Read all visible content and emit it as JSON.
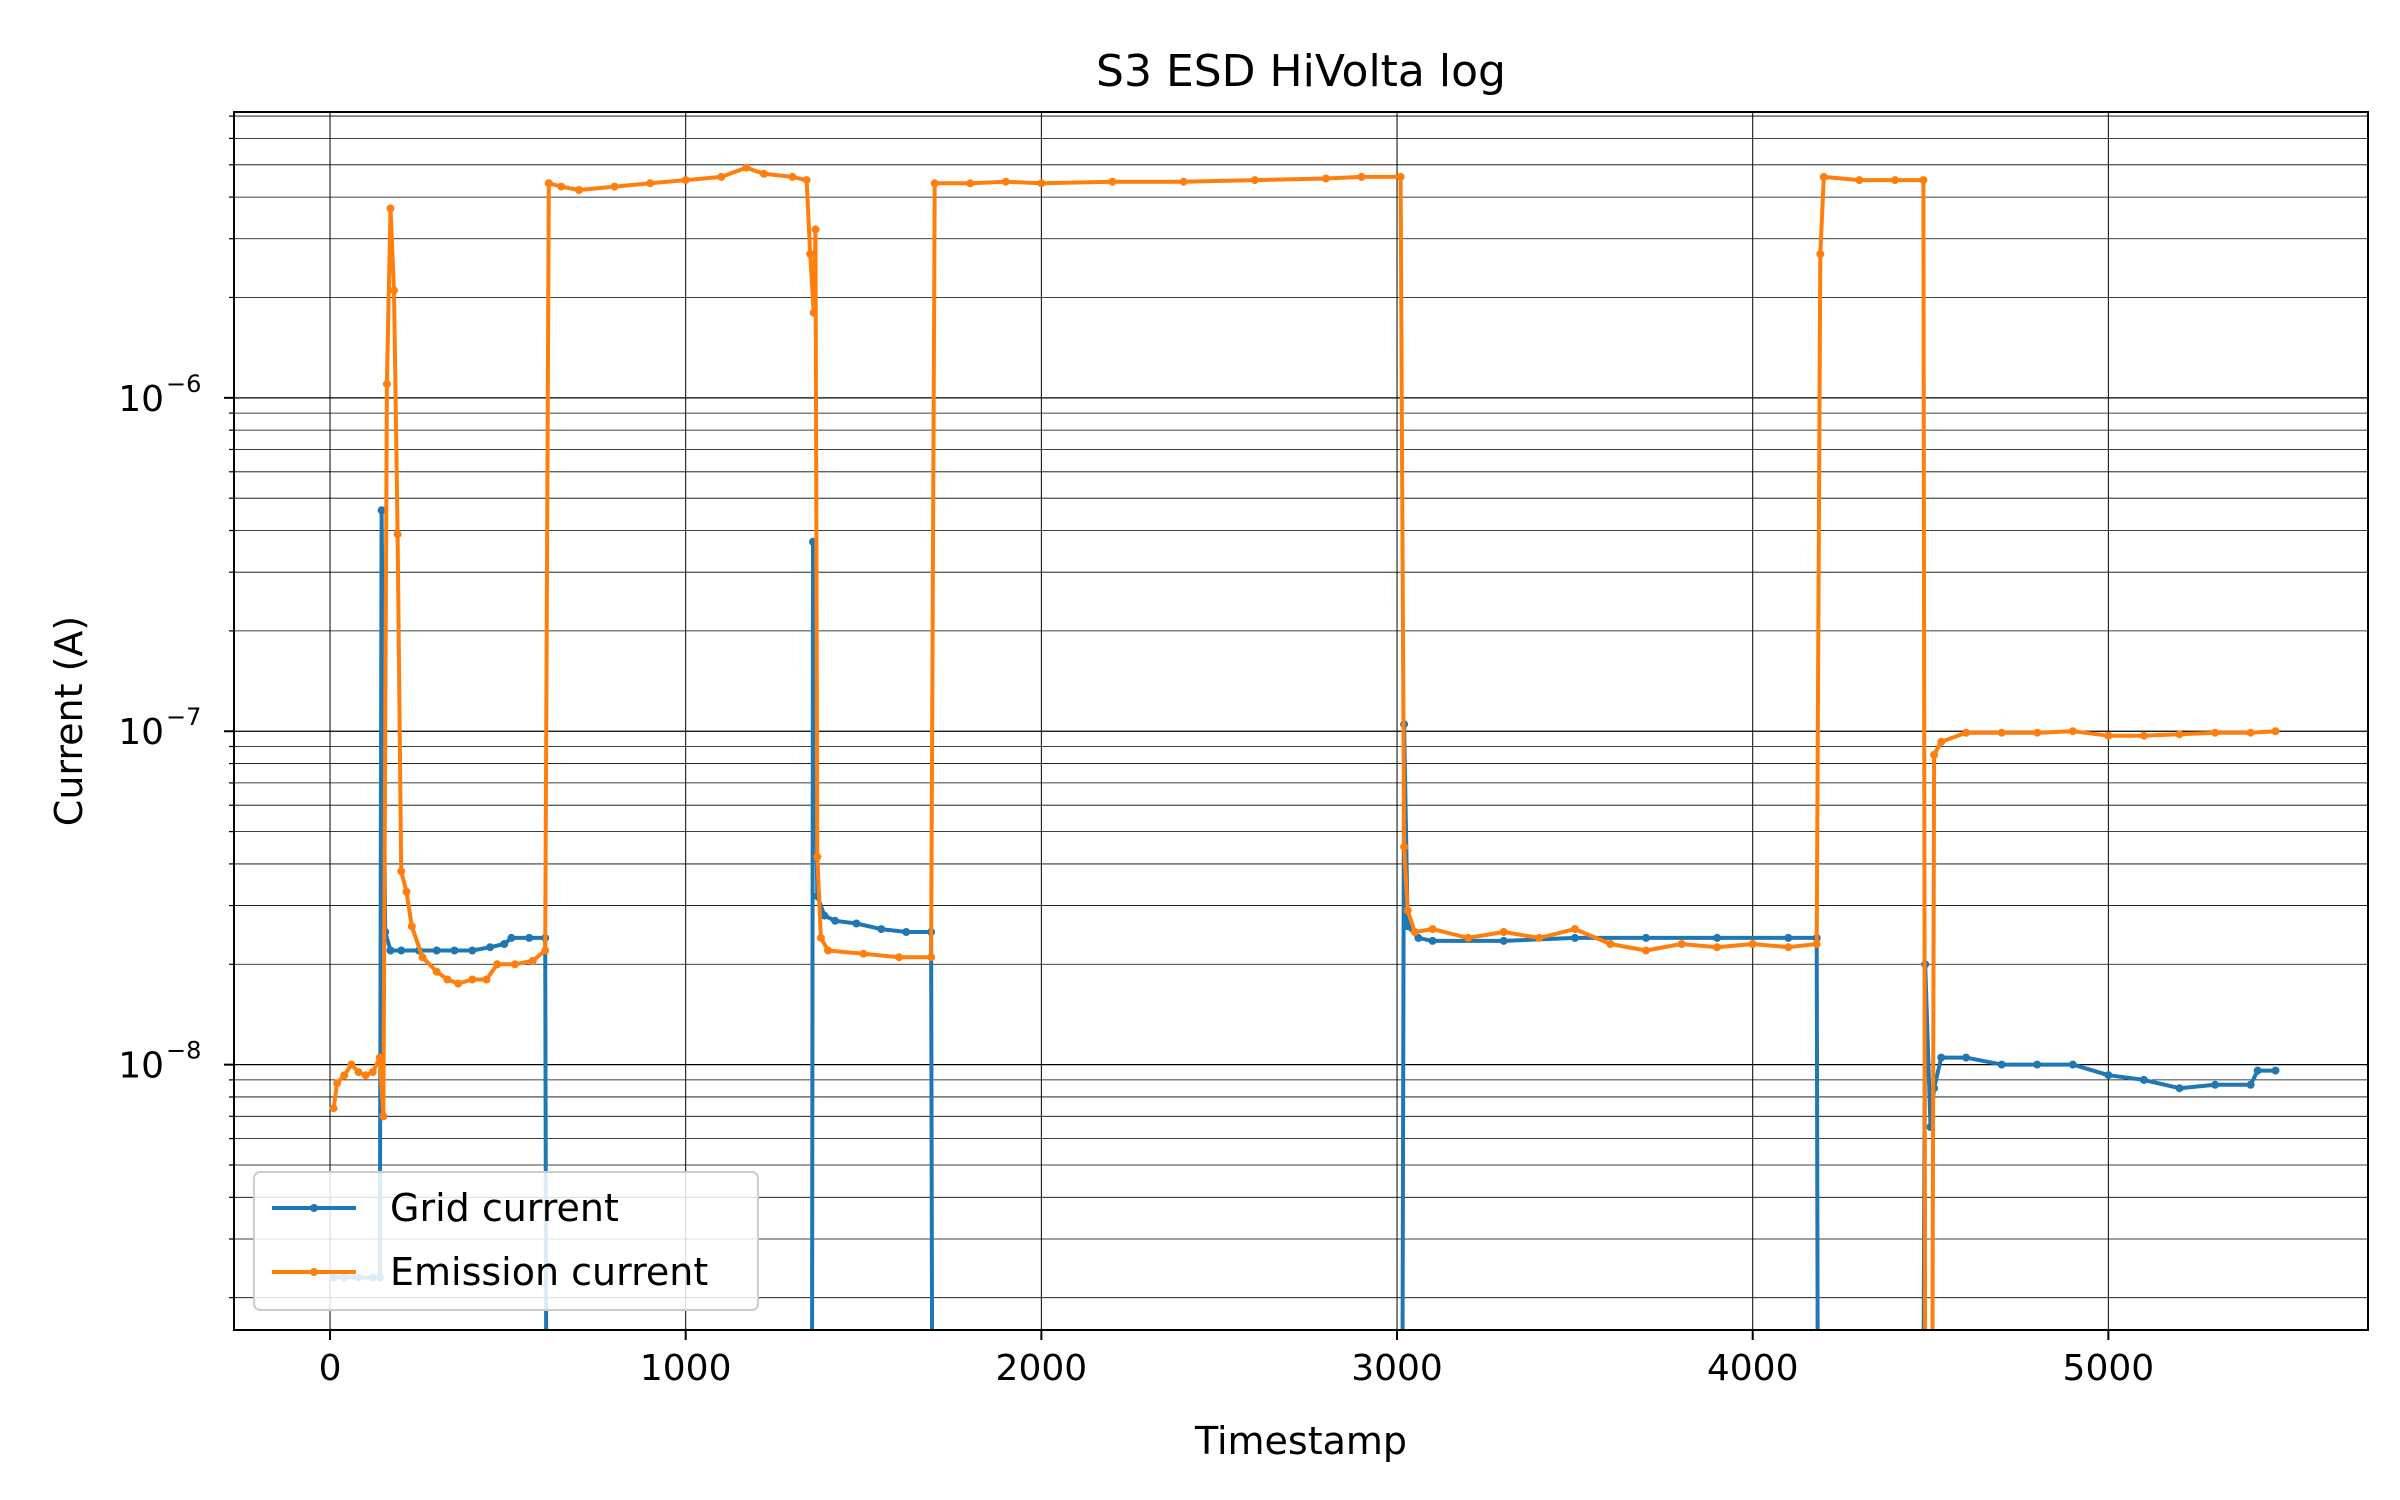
{
  "chart_data": {
    "type": "line",
    "title": "S3 ESD HiVolta log",
    "xlabel": "Timestamp",
    "ylabel": "Current (A)",
    "xlim": [
      -270,
      5730
    ],
    "ylim": [
      1.6e-09,
      7.2e-06
    ],
    "yscale": "log",
    "grid": "both",
    "legend_position": "lower-left",
    "x_ticks": [
      {
        "value": 0,
        "label": "0"
      },
      {
        "value": 1000,
        "label": "1000"
      },
      {
        "value": 2000,
        "label": "2000"
      },
      {
        "value": 3000,
        "label": "3000"
      },
      {
        "value": 4000,
        "label": "4000"
      },
      {
        "value": 5000,
        "label": "5000"
      }
    ],
    "y_ticks": [
      {
        "value": 1e-08,
        "base": "10",
        "exp": "−8"
      },
      {
        "value": 1e-07,
        "base": "10",
        "exp": "−7"
      },
      {
        "value": 1e-06,
        "base": "10",
        "exp": "−6"
      }
    ],
    "series": [
      {
        "name": "Grid current",
        "color": "#1f77b4",
        "points": [
          [
            10,
            2.3e-09
          ],
          [
            40,
            2.3e-09
          ],
          [
            80,
            2.3e-09
          ],
          [
            120,
            2.3e-09
          ],
          [
            140,
            2.3e-09
          ],
          [
            145,
            4.6e-07
          ],
          [
            155,
            2.5e-08
          ],
          [
            170,
            2.2e-08
          ],
          [
            200,
            2.2e-08
          ],
          [
            250,
            2.2e-08
          ],
          [
            300,
            2.2e-08
          ],
          [
            350,
            2.2e-08
          ],
          [
            400,
            2.2e-08
          ],
          [
            450,
            2.25e-08
          ],
          [
            490,
            2.3e-08
          ],
          [
            510,
            2.4e-08
          ],
          [
            560,
            2.4e-08
          ],
          [
            605,
            2.4e-08
          ],
          [
            608,
            1e-09
          ],
          [
            1355,
            1e-09
          ],
          [
            1358,
            3.7e-07
          ],
          [
            1370,
            3.2e-08
          ],
          [
            1390,
            2.8e-08
          ],
          [
            1420,
            2.7e-08
          ],
          [
            1480,
            2.65e-08
          ],
          [
            1550,
            2.55e-08
          ],
          [
            1620,
            2.5e-08
          ],
          [
            1690,
            2.5e-08
          ],
          [
            1693,
            1e-09
          ],
          [
            3015,
            1e-09
          ],
          [
            3020,
            1.05e-07
          ],
          [
            3030,
            2.6e-08
          ],
          [
            3060,
            2.4e-08
          ],
          [
            3100,
            2.35e-08
          ],
          [
            3300,
            2.35e-08
          ],
          [
            3500,
            2.4e-08
          ],
          [
            3700,
            2.4e-08
          ],
          [
            3900,
            2.4e-08
          ],
          [
            4100,
            2.4e-08
          ],
          [
            4180,
            2.4e-08
          ],
          [
            4183,
            1e-09
          ],
          [
            4480,
            1e-09
          ],
          [
            4485,
            2e-08
          ],
          [
            4500,
            6.5e-09
          ],
          [
            4510,
            8.5e-09
          ],
          [
            4530,
            1.05e-08
          ],
          [
            4600,
            1.05e-08
          ],
          [
            4700,
            1e-08
          ],
          [
            4800,
            1e-08
          ],
          [
            4900,
            1e-08
          ],
          [
            5000,
            9.3e-09
          ],
          [
            5100,
            9e-09
          ],
          [
            5200,
            8.5e-09
          ],
          [
            5300,
            8.7e-09
          ],
          [
            5400,
            8.7e-09
          ],
          [
            5420,
            9.6e-09
          ],
          [
            5470,
            9.6e-09
          ]
        ]
      },
      {
        "name": "Emission current",
        "color": "#ff7f0e",
        "points": [
          [
            10,
            7.4e-09
          ],
          [
            20,
            8.8e-09
          ],
          [
            40,
            9.3e-09
          ],
          [
            60,
            1e-08
          ],
          [
            80,
            9.5e-09
          ],
          [
            100,
            9.3e-09
          ],
          [
            120,
            9.5e-09
          ],
          [
            140,
            1.05e-08
          ],
          [
            150,
            7e-09
          ],
          [
            160,
            1.1e-06
          ],
          [
            170,
            3.7e-06
          ],
          [
            180,
            2.1e-06
          ],
          [
            190,
            3.9e-07
          ],
          [
            200,
            3.8e-08
          ],
          [
            215,
            3.3e-08
          ],
          [
            230,
            2.6e-08
          ],
          [
            260,
            2.1e-08
          ],
          [
            300,
            1.9e-08
          ],
          [
            330,
            1.8e-08
          ],
          [
            360,
            1.75e-08
          ],
          [
            400,
            1.8e-08
          ],
          [
            440,
            1.8e-08
          ],
          [
            470,
            2e-08
          ],
          [
            520,
            2e-08
          ],
          [
            570,
            2.05e-08
          ],
          [
            605,
            2.2e-08
          ],
          [
            615,
            4.4e-06
          ],
          [
            650,
            4.3e-06
          ],
          [
            700,
            4.2e-06
          ],
          [
            800,
            4.3e-06
          ],
          [
            900,
            4.4e-06
          ],
          [
            1000,
            4.5e-06
          ],
          [
            1100,
            4.6e-06
          ],
          [
            1170,
            4.9e-06
          ],
          [
            1220,
            4.7e-06
          ],
          [
            1300,
            4.6e-06
          ],
          [
            1340,
            4.5e-06
          ],
          [
            1350,
            2.7e-06
          ],
          [
            1360,
            1.8e-06
          ],
          [
            1365,
            3.2e-06
          ],
          [
            1370,
            4.2e-08
          ],
          [
            1380,
            2.4e-08
          ],
          [
            1400,
            2.2e-08
          ],
          [
            1500,
            2.15e-08
          ],
          [
            1600,
            2.1e-08
          ],
          [
            1690,
            2.1e-08
          ],
          [
            1700,
            4.4e-06
          ],
          [
            1800,
            4.4e-06
          ],
          [
            1900,
            4.45e-06
          ],
          [
            2000,
            4.4e-06
          ],
          [
            2200,
            4.45e-06
          ],
          [
            2400,
            4.45e-06
          ],
          [
            2600,
            4.5e-06
          ],
          [
            2800,
            4.55e-06
          ],
          [
            2900,
            4.6e-06
          ],
          [
            3010,
            4.6e-06
          ],
          [
            3020,
            4.5e-08
          ],
          [
            3030,
            2.9e-08
          ],
          [
            3050,
            2.5e-08
          ],
          [
            3100,
            2.55e-08
          ],
          [
            3200,
            2.4e-08
          ],
          [
            3300,
            2.5e-08
          ],
          [
            3400,
            2.4e-08
          ],
          [
            3500,
            2.55e-08
          ],
          [
            3600,
            2.3e-08
          ],
          [
            3700,
            2.2e-08
          ],
          [
            3800,
            2.3e-08
          ],
          [
            3900,
            2.25e-08
          ],
          [
            4000,
            2.3e-08
          ],
          [
            4100,
            2.25e-08
          ],
          [
            4180,
            2.3e-08
          ],
          [
            4190,
            2.7e-06
          ],
          [
            4200,
            4.6e-06
          ],
          [
            4300,
            4.5e-06
          ],
          [
            4400,
            4.5e-06
          ],
          [
            4480,
            4.5e-06
          ],
          [
            4485,
            1e-09
          ],
          [
            4505,
            1e-09
          ],
          [
            4510,
            8.5e-08
          ],
          [
            4530,
            9.3e-08
          ],
          [
            4600,
            9.9e-08
          ],
          [
            4700,
            9.9e-08
          ],
          [
            4800,
            9.9e-08
          ],
          [
            4900,
            1e-07
          ],
          [
            5000,
            9.7e-08
          ],
          [
            5100,
            9.7e-08
          ],
          [
            5200,
            9.8e-08
          ],
          [
            5300,
            9.9e-08
          ],
          [
            5400,
            9.9e-08
          ],
          [
            5470,
            1e-07
          ]
        ]
      }
    ]
  }
}
